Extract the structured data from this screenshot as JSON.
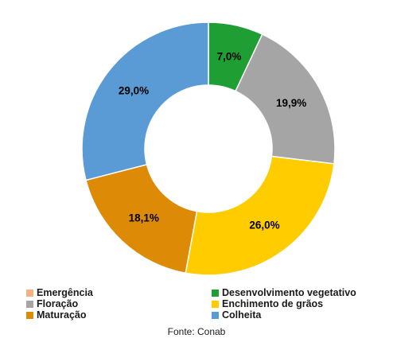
{
  "chart_data": {
    "type": "pie",
    "title": "",
    "donut": true,
    "categories": [
      "Emergência",
      "Desenvolvimento vegetativo",
      "Floração",
      "Enchimento de grãos",
      "Maturação",
      "Colheita"
    ],
    "values": [
      0.0,
      7.0,
      19.9,
      26.0,
      18.1,
      29.0
    ],
    "value_labels": [
      "",
      "7,0%",
      "19,9%",
      "26,0%",
      "18,1%",
      "29,0%"
    ],
    "colors": [
      "#f4b183",
      "#1e9e33",
      "#a5a5a5",
      "#ffcc00",
      "#dd8a06",
      "#5b9bd5"
    ],
    "legend": {
      "placement": "bottom",
      "items": [
        {
          "label": "Emergência",
          "color": "#f4b183"
        },
        {
          "label": "Desenvolvimento vegetativo",
          "color": "#1e9e33"
        },
        {
          "label": "Floração",
          "color": "#a5a5a5"
        },
        {
          "label": "Enchimento de grãos",
          "color": "#ffcc00"
        },
        {
          "label": "Maturação",
          "color": "#dd8a06"
        },
        {
          "label": "Colheita",
          "color": "#5b9bd5"
        }
      ]
    }
  },
  "source": "Fonte: Conab"
}
